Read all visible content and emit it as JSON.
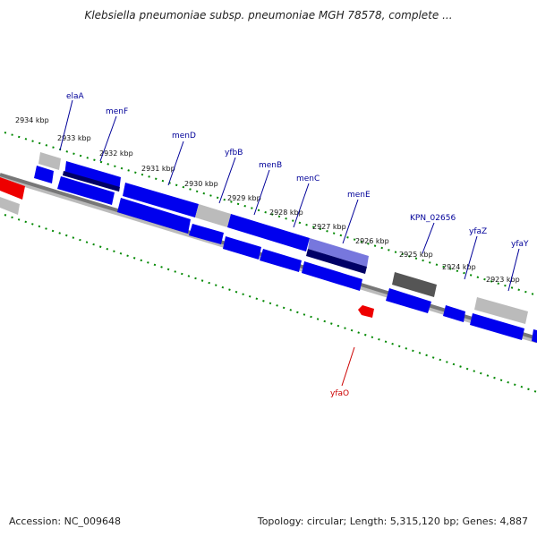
{
  "title": "Klebsiella pneumoniae subsp. pneumoniae MGH 78578, complete ...",
  "footer": {
    "accession": "Accession: NC_009648",
    "summary": "Topology: circular; Length: 5,315,120 bp; Genes: 4,887"
  },
  "colors": {
    "forward_gene": "#0000ee",
    "highlight_gene": "#7777dd",
    "dark_gene": "#000066",
    "pseudo_gene": "#bbbbbb",
    "dark_gray_gene": "#555555",
    "red_gene": "#ee0000",
    "tick": "#008800",
    "label_forward": "#000099",
    "label_red": "#cc0000",
    "backbone": "#888888"
  },
  "scale_ticks": [
    "2934 kbp",
    "2933 kbp",
    "2932 kbp",
    "2931 kbp",
    "2930 kbp",
    "2929 kbp",
    "2928 kbp",
    "2927 kbp",
    "2926 kbp",
    "2925 kbp",
    "2924 kbp",
    "2923 kbp"
  ],
  "gene_labels": [
    "elaA",
    "menF",
    "menD",
    "yfbB",
    "menB",
    "menC",
    "menE",
    "KPN_02656",
    "yfaZ",
    "yfaY",
    "yfaO"
  ]
}
